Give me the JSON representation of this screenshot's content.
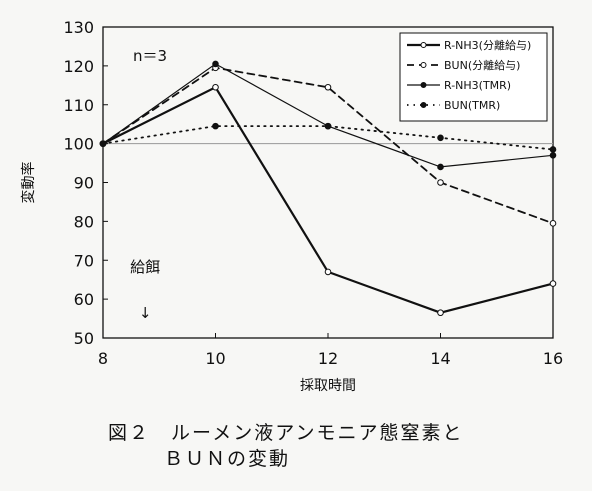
{
  "chart_data": {
    "type": "line",
    "x": [
      8,
      10,
      12,
      14,
      16
    ],
    "xlabel": "採取時間",
    "ylabel": "変動率",
    "xlim": [
      8,
      16
    ],
    "ylim": [
      50,
      130
    ],
    "xticks": [
      "8",
      "10",
      "12",
      "14",
      "16"
    ],
    "yticks": [
      "50",
      "60",
      "70",
      "80",
      "90",
      "100",
      "110",
      "120",
      "130"
    ],
    "reference_line": 100,
    "grid": false,
    "legend_position": "top-right",
    "annotations": {
      "n": "n＝3",
      "feeding": "給餌",
      "feeding_x": 8.75,
      "arrow": "↓"
    },
    "series": [
      {
        "name": "R-NH3(分離給与)",
        "values": [
          100,
          114.5,
          67,
          56.5,
          64
        ],
        "line": "solid",
        "width": 2.2,
        "marker": "open"
      },
      {
        "name": "BUN(分離給与)",
        "values": [
          100,
          119.5,
          114.5,
          90,
          79.5
        ],
        "line": "dashed",
        "width": 1.8,
        "marker": "open"
      },
      {
        "name": "R-NH3(TMR)",
        "values": [
          100,
          120.5,
          104.5,
          94,
          97
        ],
        "line": "solid",
        "width": 1.2,
        "marker": "filled"
      },
      {
        "name": "BUN(TMR)",
        "values": [
          100,
          104.5,
          104.5,
          101.5,
          98.5
        ],
        "line": "dotted",
        "width": 1.8,
        "marker": "filled"
      }
    ]
  },
  "caption": {
    "line1": "図２　ルーメン液アンモニア態窒素と",
    "line2": "ＢＵＮの変動"
  }
}
